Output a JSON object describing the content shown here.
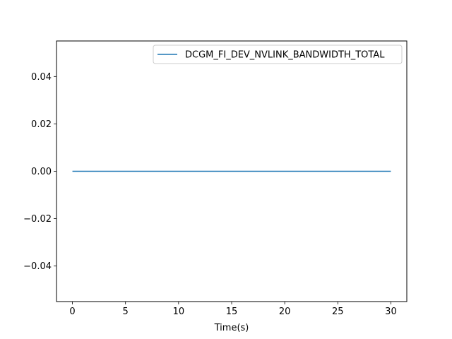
{
  "chart_data": {
    "type": "line",
    "title": "",
    "xlabel": "Time(s)",
    "ylabel": "",
    "xlim": [
      -1.5,
      31.5
    ],
    "ylim": [
      -0.055,
      0.055
    ],
    "x_ticks": [
      0,
      5,
      10,
      15,
      20,
      25,
      30
    ],
    "x_tick_labels": [
      "0",
      "5",
      "10",
      "15",
      "20",
      "25",
      "30"
    ],
    "y_ticks": [
      -0.04,
      -0.02,
      0.0,
      0.02,
      0.04
    ],
    "y_tick_labels": [
      "−0.04",
      "−0.02",
      "0.00",
      "0.02",
      "0.04"
    ],
    "grid": false,
    "legend_position": "top-right",
    "series": [
      {
        "name": "DCGM_FI_DEV_NVLINK_BANDWIDTH_TOTAL",
        "color": "#1f77b4",
        "x": [
          0,
          30
        ],
        "y": [
          0,
          0
        ]
      }
    ]
  }
}
